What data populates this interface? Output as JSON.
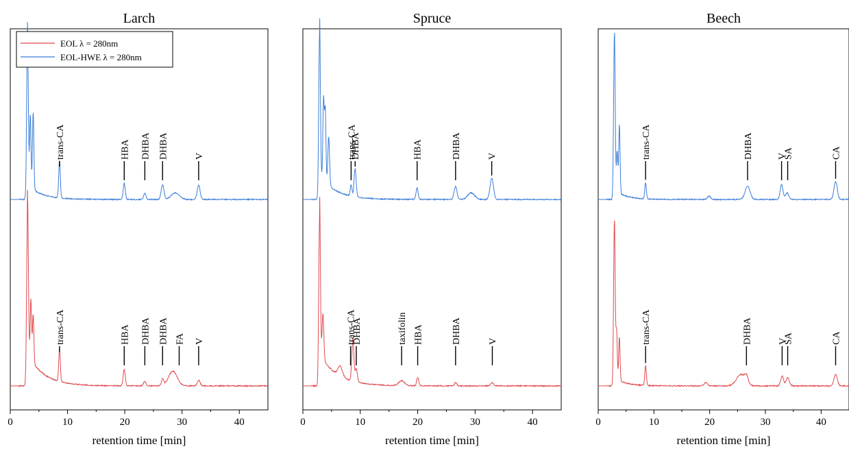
{
  "chart_data": [
    {
      "type": "line",
      "title": "Larch",
      "xlabel": "retention time [min]",
      "xlim": [
        0,
        45
      ],
      "xticks": [
        0,
        10,
        20,
        30,
        40
      ],
      "legend": {
        "placement": "top-left",
        "entries": [
          {
            "label": "EOL λ = 280nm",
            "color": "#e0474c"
          },
          {
            "label": "EOL-HWE λ = 280nm",
            "color": "#3a7dd8"
          }
        ]
      },
      "series": [
        {
          "name": "EOL-HWE λ = 280nm",
          "color": "#3a7dd8",
          "peaks": [
            {
              "x": 3.0,
              "h": 1.0,
              "w": 0.14
            },
            {
              "x": 3.5,
              "h": 0.45,
              "w": 0.12
            },
            {
              "x": 4.0,
              "h": 0.48,
              "w": 0.12
            },
            {
              "x": 8.6,
              "h": 0.23,
              "w": 0.14
            },
            {
              "x": 19.9,
              "h": 0.1,
              "w": 0.18
            },
            {
              "x": 23.5,
              "h": 0.04,
              "w": 0.2
            },
            {
              "x": 26.6,
              "h": 0.09,
              "w": 0.25
            },
            {
              "x": 28.8,
              "h": 0.04,
              "w": 0.7
            },
            {
              "x": 32.9,
              "h": 0.09,
              "w": 0.25
            }
          ],
          "tail": {
            "start": 3.0,
            "h": 0.09,
            "tau": 2.5
          }
        },
        {
          "name": "EOL λ = 280nm",
          "color": "#e0474c",
          "peaks": [
            {
              "x": 3.0,
              "h": 1.0,
              "w": 0.15
            },
            {
              "x": 3.6,
              "h": 0.37,
              "w": 0.12
            },
            {
              "x": 4.0,
              "h": 0.3,
              "w": 0.12
            },
            {
              "x": 8.6,
              "h": 0.2,
              "w": 0.14
            },
            {
              "x": 19.9,
              "h": 0.1,
              "w": 0.18
            },
            {
              "x": 23.5,
              "h": 0.03,
              "w": 0.2
            },
            {
              "x": 26.6,
              "h": 0.04,
              "w": 0.2
            },
            {
              "x": 28.4,
              "h": 0.09,
              "w": 0.75
            },
            {
              "x": 32.9,
              "h": 0.035,
              "w": 0.25
            }
          ],
          "tail": {
            "start": 3.0,
            "h": 0.2,
            "tau": 2.8
          }
        }
      ],
      "annotations_top": [
        {
          "text": "trans-CA",
          "x": 8.6
        },
        {
          "text": "HBA",
          "x": 19.9
        },
        {
          "text": "DHBA",
          "x": 23.5
        },
        {
          "text": "DHBA",
          "x": 26.6
        },
        {
          "text": "V",
          "x": 32.9
        }
      ],
      "annotations_bottom": [
        {
          "text": "trans-CA",
          "x": 8.6
        },
        {
          "text": "HBA",
          "x": 19.9
        },
        {
          "text": "DHBA",
          "x": 23.5
        },
        {
          "text": "DHBA",
          "x": 26.6
        },
        {
          "text": "FA",
          "x": 29.5
        },
        {
          "text": "V",
          "x": 32.9
        }
      ]
    },
    {
      "type": "line",
      "title": "Spruce",
      "xlabel": "retention time [min]",
      "xlim": [
        0,
        45
      ],
      "xticks": [
        0,
        10,
        20,
        30,
        40
      ],
      "series": [
        {
          "name": "EOL-HWE λ = 280nm",
          "color": "#3a7dd8",
          "peaks": [
            {
              "x": 2.9,
              "h": 1.0,
              "w": 0.14
            },
            {
              "x": 3.6,
              "h": 0.5,
              "w": 0.12
            },
            {
              "x": 3.9,
              "h": 0.45,
              "w": 0.12
            },
            {
              "x": 4.5,
              "h": 0.3,
              "w": 0.15
            },
            {
              "x": 8.4,
              "h": 0.07,
              "w": 0.15
            },
            {
              "x": 9.1,
              "h": 0.17,
              "w": 0.18
            },
            {
              "x": 19.9,
              "h": 0.07,
              "w": 0.18
            },
            {
              "x": 26.6,
              "h": 0.08,
              "w": 0.25
            },
            {
              "x": 29.3,
              "h": 0.04,
              "w": 0.6
            },
            {
              "x": 32.9,
              "h": 0.13,
              "w": 0.3
            }
          ],
          "tail": {
            "start": 2.9,
            "h": 0.15,
            "tau": 2.8
          }
        },
        {
          "name": "EOL λ = 280nm",
          "color": "#e0474c",
          "peaks": [
            {
              "x": 2.9,
              "h": 1.0,
              "w": 0.14
            },
            {
              "x": 3.5,
              "h": 0.28,
              "w": 0.15
            },
            {
              "x": 6.5,
              "h": 0.06,
              "w": 0.4
            },
            {
              "x": 8.7,
              "h": 0.26,
              "w": 0.18
            },
            {
              "x": 9.3,
              "h": 0.08,
              "w": 0.2
            },
            {
              "x": 17.2,
              "h": 0.03,
              "w": 0.5
            },
            {
              "x": 20.0,
              "h": 0.05,
              "w": 0.18
            },
            {
              "x": 26.6,
              "h": 0.02,
              "w": 0.2
            },
            {
              "x": 33.0,
              "h": 0.02,
              "w": 0.25
            }
          ],
          "tail": {
            "start": 2.9,
            "h": 0.2,
            "tau": 3.0
          }
        }
      ],
      "annotations_top": [
        {
          "text": "trans-CA",
          "x": 8.4
        },
        {
          "text": "DHBA",
          "x": 9.1
        },
        {
          "text": "HBA",
          "x": 19.9
        },
        {
          "text": "DHBA",
          "x": 26.6
        },
        {
          "text": "V",
          "x": 32.9
        }
      ],
      "annotations_bottom": [
        {
          "text": "trans-CA",
          "x": 8.3
        },
        {
          "text": "DHBA",
          "x": 9.3
        },
        {
          "text": "taxifolin",
          "x": 17.2
        },
        {
          "text": "HBA",
          "x": 20.0
        },
        {
          "text": "DHBA",
          "x": 26.6
        },
        {
          "text": "V",
          "x": 33.0
        }
      ]
    },
    {
      "type": "line",
      "title": "Beech",
      "xlabel": "retention time [min]",
      "xlim": [
        0,
        45
      ],
      "xticks": [
        0,
        10,
        20,
        30,
        40
      ],
      "series": [
        {
          "name": "EOL-HWE λ = 280nm",
          "color": "#3a7dd8",
          "peaks": [
            {
              "x": 2.9,
              "h": 1.0,
              "w": 0.14
            },
            {
              "x": 3.4,
              "h": 0.25,
              "w": 0.12
            },
            {
              "x": 3.8,
              "h": 0.42,
              "w": 0.12
            },
            {
              "x": 8.5,
              "h": 0.1,
              "w": 0.14
            },
            {
              "x": 19.9,
              "h": 0.02,
              "w": 0.3
            },
            {
              "x": 26.8,
              "h": 0.08,
              "w": 0.45
            },
            {
              "x": 32.9,
              "h": 0.09,
              "w": 0.25
            },
            {
              "x": 33.9,
              "h": 0.04,
              "w": 0.3
            },
            {
              "x": 42.6,
              "h": 0.11,
              "w": 0.3
            }
          ],
          "tail": {
            "start": 2.9,
            "h": 0.06,
            "tau": 2.0
          }
        },
        {
          "name": "EOL λ = 280nm",
          "color": "#e0474c",
          "peaks": [
            {
              "x": 2.9,
              "h": 1.0,
              "w": 0.14
            },
            {
              "x": 3.3,
              "h": 0.3,
              "w": 0.12
            },
            {
              "x": 3.8,
              "h": 0.27,
              "w": 0.12
            },
            {
              "x": 8.5,
              "h": 0.12,
              "w": 0.14
            },
            {
              "x": 19.3,
              "h": 0.02,
              "w": 0.3
            },
            {
              "x": 25.6,
              "h": 0.07,
              "w": 0.8
            },
            {
              "x": 26.6,
              "h": 0.04,
              "w": 0.3
            },
            {
              "x": 33.0,
              "h": 0.06,
              "w": 0.25
            },
            {
              "x": 34.0,
              "h": 0.05,
              "w": 0.3
            },
            {
              "x": 42.6,
              "h": 0.07,
              "w": 0.3
            }
          ],
          "tail": {
            "start": 2.9,
            "h": 0.05,
            "tau": 2.0
          }
        }
      ],
      "annotations_top": [
        {
          "text": "trans-CA",
          "x": 8.5
        },
        {
          "text": "DHBA",
          "x": 26.8
        },
        {
          "text": "V",
          "x": 32.9
        },
        {
          "text": "SA",
          "x": 34.0
        },
        {
          "text": "CA",
          "x": 42.6
        }
      ],
      "annotations_bottom": [
        {
          "text": "trans-CA",
          "x": 8.5
        },
        {
          "text": "DHBA",
          "x": 26.6
        },
        {
          "text": "V",
          "x": 33.0
        },
        {
          "text": "SA",
          "x": 34.0
        },
        {
          "text": "CA",
          "x": 42.6
        }
      ]
    }
  ]
}
